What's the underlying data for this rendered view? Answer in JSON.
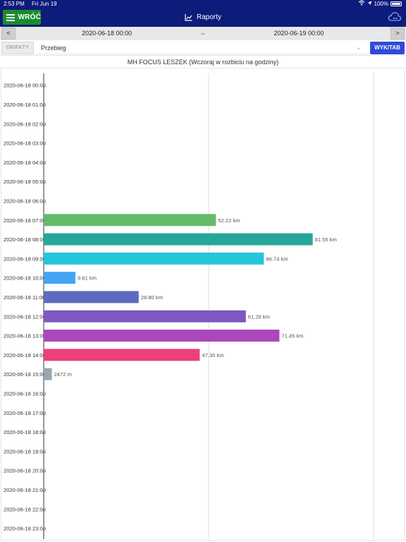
{
  "status_bar": {
    "time": "2:53 PM",
    "date": "Fri Jun 19",
    "battery": "100%"
  },
  "header": {
    "back_label": "WRÓĆ",
    "title": "Raporty",
    "icons": [
      "menu-icon",
      "chart-icon",
      "cloud-icon"
    ]
  },
  "date_range": {
    "prev_label": "<",
    "start": "2020-06-18 00:00",
    "swap_symbol": "⇔",
    "end": "2020-06-19 00:00",
    "next_label": ">"
  },
  "filters": {
    "objects_label": "OBIEKTY",
    "report_type": "Przebieg",
    "view_toggle_label": "WYK/TAB"
  },
  "chart_data": {
    "type": "bar",
    "orientation": "horizontal",
    "title": "MH FOCUS LESZEK (Wczoraj w rozbiciu na godziny)",
    "unit": "km",
    "xlim": [
      0,
      100
    ],
    "categories": [
      "2020-06-18 00:00",
      "2020-06-18 01:00",
      "2020-06-18 02:00",
      "2020-06-18 03:00",
      "2020-06-18 04:00",
      "2020-06-18 05:00",
      "2020-06-18 06:00",
      "2020-06-18 07:00",
      "2020-06-18 08:00",
      "2020-06-18 09:00",
      "2020-06-18 10:00",
      "2020-06-18 11:00",
      "2020-06-18 12:00",
      "2020-06-18 13:00",
      "2020-06-18 14:00",
      "2020-06-18 15:00",
      "2020-06-18 16:00",
      "2020-06-18 17:00",
      "2020-06-18 18:00",
      "2020-06-18 19:00",
      "2020-06-18 20:00",
      "2020-06-18 21:00",
      "2020-06-18 22:00",
      "2020-06-18 23:00"
    ],
    "values": [
      0,
      0,
      0,
      0,
      0,
      0,
      0,
      52.22,
      81.55,
      66.74,
      9.61,
      28.8,
      61.28,
      71.45,
      47.3,
      2.472,
      0,
      0,
      0,
      0,
      0,
      0,
      0,
      0
    ],
    "labels": [
      "",
      "",
      "",
      "",
      "",
      "",
      "",
      "52.22 km",
      "81.55 km",
      "66.74 km",
      "9.61 km",
      "28.80 km",
      "61.28 km",
      "71.45 km",
      "47.30 km",
      "2472 m",
      "",
      "",
      "",
      "",
      "",
      "",
      "",
      ""
    ],
    "colors": [
      "#e57373",
      "#e57373",
      "#e57373",
      "#e57373",
      "#e57373",
      "#e57373",
      "#e57373",
      "#66bb6a",
      "#26a69a",
      "#26c6da",
      "#42a5f5",
      "#5c6bc0",
      "#7e57c2",
      "#ab47bc",
      "#ec407a",
      "#9aa5ad",
      "#e57373",
      "#e57373",
      "#e57373",
      "#e57373",
      "#e57373",
      "#e57373",
      "#e57373",
      "#e57373"
    ],
    "grid": true
  }
}
